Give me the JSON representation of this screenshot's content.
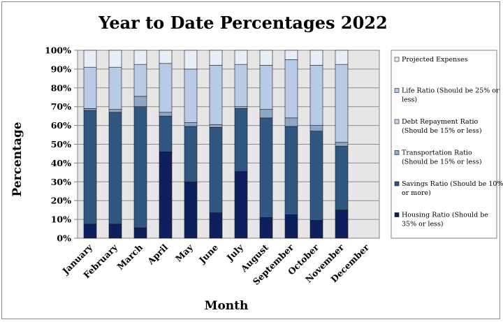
{
  "chart_data": {
    "type": "bar",
    "stacked": true,
    "title": "Year to Date Percentages 2022",
    "xlabel": "Month",
    "ylabel": "Percentage",
    "ylim": [
      0,
      100
    ],
    "yticks": [
      "0%",
      "10%",
      "20%",
      "30%",
      "40%",
      "50%",
      "60%",
      "70%",
      "80%",
      "90%",
      "100%"
    ],
    "grid": true,
    "legend_position": "right",
    "categories": [
      "January",
      "February",
      "March",
      "April",
      "May",
      "June",
      "July",
      "August",
      "September",
      "October",
      "November",
      "December"
    ],
    "series": [
      {
        "name": "Housing Ratio (Should be 35% or less)",
        "legend_lines": [
          "Housing Ratio (Should be",
          "35% or less)"
        ],
        "color": "#0d1f5c",
        "values": [
          7.5,
          7.5,
          5.5,
          46,
          30,
          13.5,
          35.5,
          11,
          12.5,
          9.5,
          15,
          0
        ]
      },
      {
        "name": "Savings Ratio (Should be 10% or more)",
        "legend_lines": [
          "Savings Ratio (Should be 10%",
          "or more)"
        ],
        "color": "#2f5782",
        "values": [
          60.5,
          59.5,
          64.5,
          19,
          29.5,
          45.5,
          33.5,
          53,
          47,
          47.5,
          34,
          0
        ]
      },
      {
        "name": "Transportation Ratio (Should be 15% or less)",
        "legend_lines": [
          "Transportation Ratio",
          "(Should be 15% or less)"
        ],
        "color": "#8ea7c4",
        "values": [
          1,
          1.5,
          5.5,
          2,
          2,
          1.5,
          1,
          4.5,
          4.5,
          3,
          2,
          0
        ]
      },
      {
        "name": "Debt Repayment Ratio (Should be 15% or less)",
        "legend_lines": [
          "Debt Repayment Ratio",
          "(Should be 15% or less)"
        ],
        "color": "#c9d6e8",
        "values": [
          0,
          0,
          0,
          0,
          0,
          0,
          0,
          0,
          0,
          0,
          0,
          0
        ]
      },
      {
        "name": "Life Ratio (Should be 25% or less)",
        "legend_lines": [
          "Life Ratio (Should be 25% or",
          "less)"
        ],
        "color": "#b7cbe6",
        "values": [
          22,
          22.5,
          17,
          26,
          28.5,
          31.5,
          22.5,
          23.5,
          31,
          32,
          41.5,
          0
        ]
      },
      {
        "name": "Projected Expenses",
        "legend_lines": [
          "Projected Expenses"
        ],
        "color": "#e8eef7",
        "values": [
          9,
          9,
          7.5,
          7,
          10,
          8,
          7.5,
          8,
          5,
          8,
          7.5,
          0
        ]
      }
    ]
  }
}
